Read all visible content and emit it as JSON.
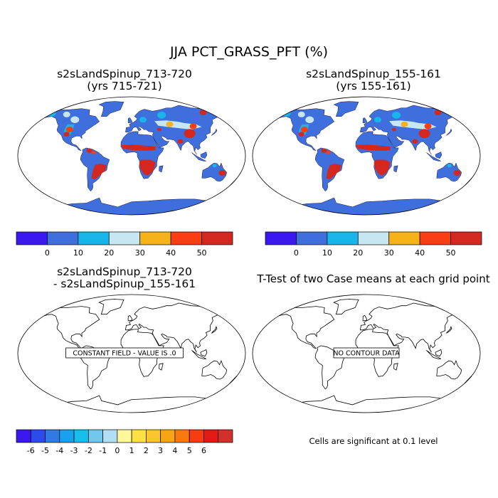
{
  "title": "JJA PCT_GRASS_PFT (%)",
  "panels": [
    {
      "id": "p1",
      "title_line1": "s2sLandSpinup_713-720",
      "title_line2": "(yrs 715-721)"
    },
    {
      "id": "p2",
      "title_line1": "s2sLandSpinup_155-161",
      "title_line2": "(yrs 155-161)"
    },
    {
      "id": "p3",
      "title_line1": "s2sLandSpinup_713-720",
      "title_line2": "- s2sLandSpinup_155-161",
      "box_label": "CONSTANT FIELD - VALUE IS .0"
    },
    {
      "id": "p4",
      "title_line1": "T-Test of two Case means at each grid point",
      "box_label": "NO CONTOUR DATA"
    }
  ],
  "significance_note": "Cells are significant at 0.1 level",
  "colorbars": {
    "top": {
      "colors": [
        "#3c18f0",
        "#3f6fdc",
        "#17b5ea",
        "#c6e6f2",
        "#f5b219",
        "#fa3d12",
        "#d3281f"
      ],
      "labels": [
        "0",
        "10",
        "20",
        "30",
        "40",
        "50"
      ]
    },
    "bottom": {
      "colors": [
        "#3c18f0",
        "#2c4be8",
        "#2f7be4",
        "#1aa0ec",
        "#19bdec",
        "#6fc9ee",
        "#b2def5",
        "#fff89a",
        "#fde045",
        "#fbc530",
        "#f7a516",
        "#f67a10",
        "#f53d12",
        "#e31913",
        "#d1312b"
      ],
      "labels": [
        "-6",
        "-5",
        "-4",
        "-3",
        "-2",
        "-1",
        "0",
        "1",
        "2",
        "3",
        "4",
        "5",
        "6"
      ]
    }
  },
  "chart_data": [
    {
      "type": "heatmap",
      "title": "s2sLandSpinup_713-720 (yrs 715-721)",
      "variable": "JJA PCT_GRASS_PFT (%)",
      "levels": [
        0,
        10,
        20,
        30,
        40,
        50
      ]
    },
    {
      "type": "heatmap",
      "title": "s2sLandSpinup_155-161 (yrs 155-161)",
      "variable": "JJA PCT_GRASS_PFT (%)",
      "levels": [
        0,
        10,
        20,
        30,
        40,
        50
      ]
    },
    {
      "type": "heatmap",
      "title": "s2sLandSpinup_713-720 - s2sLandSpinup_155-161",
      "levels": [
        -6,
        -5,
        -4,
        -3,
        -2,
        -1,
        0,
        1,
        2,
        3,
        4,
        5,
        6
      ],
      "annotation": "CONSTANT FIELD - VALUE IS .0"
    },
    {
      "type": "heatmap",
      "title": "T-Test of two Case means at each grid point",
      "annotation": "NO CONTOUR DATA"
    }
  ]
}
